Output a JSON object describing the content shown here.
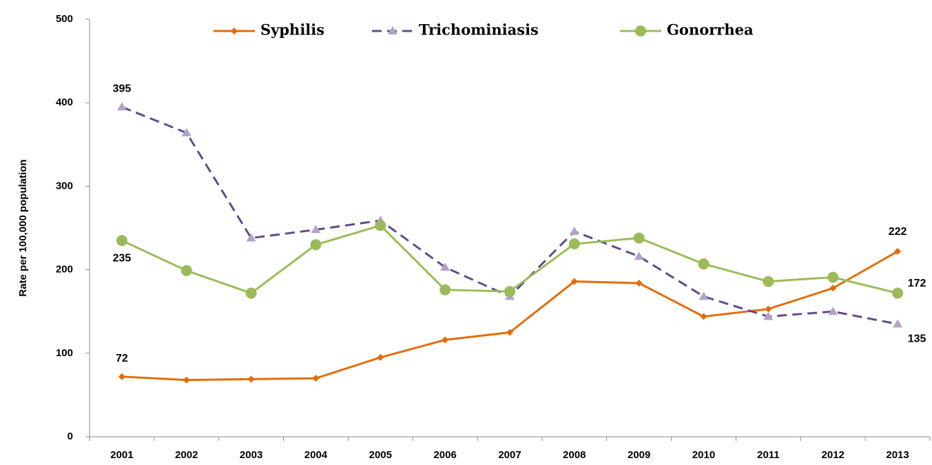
{
  "chart_data": {
    "type": "line",
    "y_label": "Rate per 100,000 population",
    "categories": [
      "2001",
      "2002",
      "2003",
      "2004",
      "2005",
      "2006",
      "2007",
      "2008",
      "2009",
      "2010",
      "2011",
      "2012",
      "2013"
    ],
    "series": [
      {
        "name": "Syphilis",
        "color": "#e46c0a",
        "marker": "diamond",
        "dashed": false,
        "values": [
          72,
          68,
          69,
          70,
          95,
          116,
          125,
          186,
          184,
          144,
          153,
          178,
          222
        ],
        "labeled": [
          0,
          12
        ]
      },
      {
        "name": "Trichominiasis",
        "color": "#5f4b8b",
        "marker_color": "#b3a2c7",
        "marker": "triangle",
        "dashed": true,
        "values": [
          395,
          364,
          238,
          248,
          259,
          203,
          168,
          246,
          216,
          168,
          144,
          150,
          135
        ],
        "labeled": [
          0,
          12
        ]
      },
      {
        "name": "Gonorrhea",
        "color": "#9bbb59",
        "marker": "circle",
        "dashed": false,
        "values": [
          235,
          199,
          172,
          230,
          253,
          176,
          174,
          231,
          238,
          207,
          186,
          191,
          172
        ],
        "labeled": [
          0,
          12
        ]
      }
    ],
    "ylim": [
      0,
      500
    ],
    "yticks": [
      0,
      100,
      200,
      300,
      400,
      500
    ],
    "grid": false,
    "legend": "top"
  }
}
